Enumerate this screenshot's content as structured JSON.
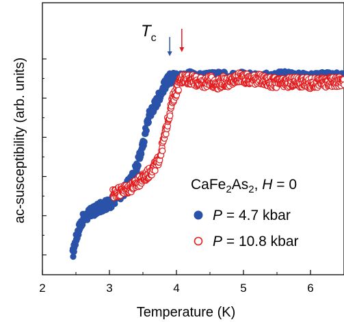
{
  "chart_data": {
    "type": "scatter",
    "title": "",
    "xlabel": "Temperature (K)",
    "ylabel": "ac-susceptibility (arb. units)",
    "xlim": [
      2,
      6.5
    ],
    "ylim": [
      0,
      1
    ],
    "xticks": [
      2,
      3,
      4,
      5,
      6
    ],
    "xtick_labels": [
      "2",
      "3",
      "4",
      "5",
      "6"
    ],
    "y_tick_labels_shown": false,
    "grid": false,
    "legend_title": {
      "parts": [
        "CaFe",
        "2",
        "As",
        "2",
        ", ",
        "H",
        " = 0"
      ]
    },
    "annotation": {
      "symbol": "T",
      "subscript": "c"
    },
    "series": [
      {
        "label_prefix": "P",
        "label_rest": " = 4.7 kbar",
        "color": "#2a52a8",
        "marker": "filled-circle",
        "tc_arrow_x": 3.9,
        "points": [
          [
            2.45,
            0.0
          ],
          [
            2.5,
            0.08
          ],
          [
            2.55,
            0.14
          ],
          [
            2.6,
            0.18
          ],
          [
            2.7,
            0.21
          ],
          [
            2.8,
            0.23
          ],
          [
            2.9,
            0.25
          ],
          [
            3.0,
            0.26
          ],
          [
            3.1,
            0.29
          ],
          [
            3.2,
            0.32
          ],
          [
            3.3,
            0.37
          ],
          [
            3.4,
            0.44
          ],
          [
            3.5,
            0.56
          ],
          [
            3.55,
            0.65
          ],
          [
            3.6,
            0.72
          ],
          [
            3.7,
            0.78
          ],
          [
            3.8,
            0.85
          ],
          [
            3.85,
            0.88
          ],
          [
            3.9,
            0.9
          ],
          [
            4.0,
            0.905
          ],
          [
            4.2,
            0.91
          ],
          [
            4.4,
            0.9
          ],
          [
            4.6,
            0.91
          ],
          [
            4.8,
            0.905
          ],
          [
            5.0,
            0.91
          ],
          [
            5.2,
            0.9
          ],
          [
            5.4,
            0.905
          ],
          [
            5.6,
            0.91
          ],
          [
            5.8,
            0.905
          ],
          [
            6.0,
            0.9
          ],
          [
            6.2,
            0.905
          ],
          [
            6.4,
            0.905
          ],
          [
            6.5,
            0.9
          ]
        ]
      },
      {
        "label_prefix": "P",
        "label_rest": " = 10.8 kbar",
        "color": "#e31a1c",
        "marker": "open-circle",
        "tc_arrow_x": 4.08,
        "points": [
          [
            3.05,
            0.31
          ],
          [
            3.1,
            0.32
          ],
          [
            3.2,
            0.33
          ],
          [
            3.3,
            0.34
          ],
          [
            3.4,
            0.36
          ],
          [
            3.5,
            0.39
          ],
          [
            3.6,
            0.42
          ],
          [
            3.7,
            0.46
          ],
          [
            3.75,
            0.5
          ],
          [
            3.8,
            0.57
          ],
          [
            3.85,
            0.65
          ],
          [
            3.9,
            0.73
          ],
          [
            3.95,
            0.8
          ],
          [
            4.0,
            0.84
          ],
          [
            4.05,
            0.88
          ],
          [
            4.1,
            0.905
          ],
          [
            4.2,
            0.895
          ],
          [
            4.3,
            0.885
          ],
          [
            4.4,
            0.875
          ],
          [
            4.5,
            0.89
          ],
          [
            4.6,
            0.87
          ],
          [
            4.7,
            0.885
          ],
          [
            4.8,
            0.88
          ],
          [
            4.9,
            0.9
          ],
          [
            5.0,
            0.905
          ],
          [
            5.1,
            0.89
          ],
          [
            5.2,
            0.9
          ],
          [
            5.4,
            0.88
          ],
          [
            5.6,
            0.875
          ],
          [
            5.8,
            0.885
          ],
          [
            6.0,
            0.875
          ],
          [
            6.2,
            0.88
          ],
          [
            6.4,
            0.885
          ],
          [
            6.5,
            0.88
          ]
        ]
      }
    ]
  }
}
